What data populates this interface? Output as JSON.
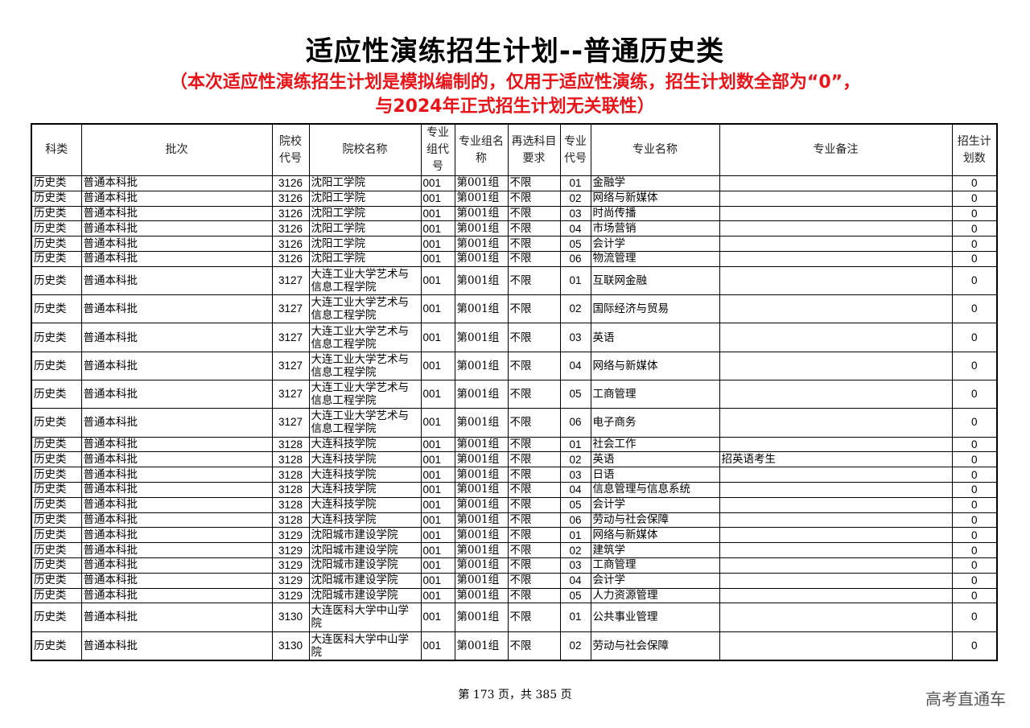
{
  "title": "适应性演练招生计划--普通历史类",
  "subtitle_line1": "（本次适应性演练招生计划是模拟编制的，仅用于适应性演练，招生计划数全部为“0”，",
  "subtitle_line2": "与2024年正式招生计划无关联性）",
  "headers": [
    "科类",
    "批次",
    "院校代号",
    "院校名称",
    "专业组代号",
    "专业组名称",
    "再选科目要求",
    "专业代号",
    "专业名称",
    "专业备注",
    "招生计划数"
  ],
  "rows": [
    [
      "历史类",
      "普通本科批",
      "3126",
      "沈阳工学院",
      "001",
      "第001组",
      "不限",
      "01",
      "金融学",
      "",
      "0"
    ],
    [
      "历史类",
      "普通本科批",
      "3126",
      "沈阳工学院",
      "001",
      "第001组",
      "不限",
      "02",
      "网络与新媒体",
      "",
      "0"
    ],
    [
      "历史类",
      "普通本科批",
      "3126",
      "沈阳工学院",
      "001",
      "第001组",
      "不限",
      "03",
      "时尚传播",
      "",
      "0"
    ],
    [
      "历史类",
      "普通本科批",
      "3126",
      "沈阳工学院",
      "001",
      "第001组",
      "不限",
      "04",
      "市场营销",
      "",
      "0"
    ],
    [
      "历史类",
      "普通本科批",
      "3126",
      "沈阳工学院",
      "001",
      "第001组",
      "不限",
      "05",
      "会计学",
      "",
      "0"
    ],
    [
      "历史类",
      "普通本科批",
      "3126",
      "沈阳工学院",
      "001",
      "第001组",
      "不限",
      "06",
      "物流管理",
      "",
      "0"
    ],
    [
      "历史类",
      "普通本科批",
      "3127",
      "大连工业大学艺术与信息工程学院",
      "001",
      "第001组",
      "不限",
      "01",
      "互联网金融",
      "",
      "0"
    ],
    [
      "历史类",
      "普通本科批",
      "3127",
      "大连工业大学艺术与信息工程学院",
      "001",
      "第001组",
      "不限",
      "02",
      "国际经济与贸易",
      "",
      "0"
    ],
    [
      "历史类",
      "普通本科批",
      "3127",
      "大连工业大学艺术与信息工程学院",
      "001",
      "第001组",
      "不限",
      "03",
      "英语",
      "",
      "0"
    ],
    [
      "历史类",
      "普通本科批",
      "3127",
      "大连工业大学艺术与信息工程学院",
      "001",
      "第001组",
      "不限",
      "04",
      "网络与新媒体",
      "",
      "0"
    ],
    [
      "历史类",
      "普通本科批",
      "3127",
      "大连工业大学艺术与信息工程学院",
      "001",
      "第001组",
      "不限",
      "05",
      "工商管理",
      "",
      "0"
    ],
    [
      "历史类",
      "普通本科批",
      "3127",
      "大连工业大学艺术与信息工程学院",
      "001",
      "第001组",
      "不限",
      "06",
      "电子商务",
      "",
      "0"
    ],
    [
      "历史类",
      "普通本科批",
      "3128",
      "大连科技学院",
      "001",
      "第001组",
      "不限",
      "01",
      "社会工作",
      "",
      "0"
    ],
    [
      "历史类",
      "普通本科批",
      "3128",
      "大连科技学院",
      "001",
      "第001组",
      "不限",
      "02",
      "英语",
      "招英语考生",
      "0"
    ],
    [
      "历史类",
      "普通本科批",
      "3128",
      "大连科技学院",
      "001",
      "第001组",
      "不限",
      "03",
      "日语",
      "",
      "0"
    ],
    [
      "历史类",
      "普通本科批",
      "3128",
      "大连科技学院",
      "001",
      "第001组",
      "不限",
      "04",
      "信息管理与信息系统",
      "",
      "0"
    ],
    [
      "历史类",
      "普通本科批",
      "3128",
      "大连科技学院",
      "001",
      "第001组",
      "不限",
      "05",
      "会计学",
      "",
      "0"
    ],
    [
      "历史类",
      "普通本科批",
      "3128",
      "大连科技学院",
      "001",
      "第001组",
      "不限",
      "06",
      "劳动与社会保障",
      "",
      "0"
    ],
    [
      "历史类",
      "普通本科批",
      "3129",
      "沈阳城市建设学院",
      "001",
      "第001组",
      "不限",
      "01",
      "网络与新媒体",
      "",
      "0"
    ],
    [
      "历史类",
      "普通本科批",
      "3129",
      "沈阳城市建设学院",
      "001",
      "第001组",
      "不限",
      "02",
      "建筑学",
      "",
      "0"
    ],
    [
      "历史类",
      "普通本科批",
      "3129",
      "沈阳城市建设学院",
      "001",
      "第001组",
      "不限",
      "03",
      "工商管理",
      "",
      "0"
    ],
    [
      "历史类",
      "普通本科批",
      "3129",
      "沈阳城市建设学院",
      "001",
      "第001组",
      "不限",
      "04",
      "会计学",
      "",
      "0"
    ],
    [
      "历史类",
      "普通本科批",
      "3129",
      "沈阳城市建设学院",
      "001",
      "第001组",
      "不限",
      "05",
      "人力资源管理",
      "",
      "0"
    ],
    [
      "历史类",
      "普通本科批",
      "3130",
      "大连医科大学中山学院",
      "001",
      "第001组",
      "不限",
      "01",
      "公共事业管理",
      "",
      "0"
    ],
    [
      "历史类",
      "普通本科批",
      "3130",
      "大连医科大学中山学院",
      "001",
      "第001组",
      "不限",
      "02",
      "劳动与社会保障",
      "",
      "0"
    ]
  ],
  "footer": "第 173 页，共 385 页",
  "brand": "高考直通车"
}
